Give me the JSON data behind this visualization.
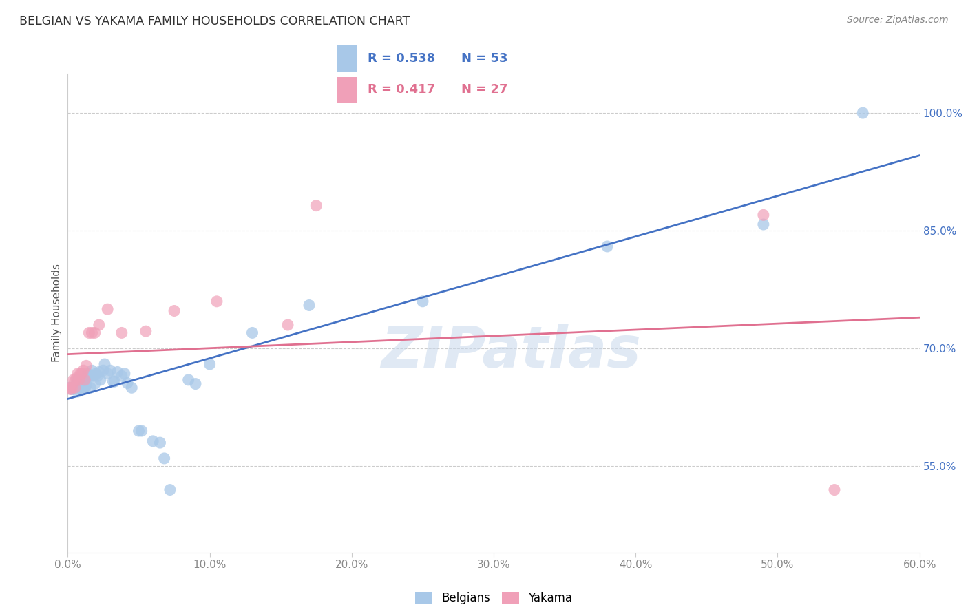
{
  "title": "BELGIAN VS YAKAMA FAMILY HOUSEHOLDS CORRELATION CHART",
  "source": "Source: ZipAtlas.com",
  "ylabel": "Family Households",
  "yticks_vals": [
    0.55,
    0.7,
    0.85,
    1.0
  ],
  "yticks_labels": [
    "55.0%",
    "70.0%",
    "85.0%",
    "100.0%"
  ],
  "xticks_vals": [
    0.0,
    0.1,
    0.2,
    0.3,
    0.4,
    0.5,
    0.6
  ],
  "xticks_labels": [
    "0.0%",
    "10.0%",
    "20.0%",
    "30.0%",
    "40.0%",
    "50.0%",
    "60.0%"
  ],
  "xlim": [
    0.0,
    0.6
  ],
  "ylim": [
    0.44,
    1.05
  ],
  "blue_scatter_color": "#a8c8e8",
  "blue_line_color": "#4472c4",
  "pink_scatter_color": "#f0a0b8",
  "pink_line_color": "#e07090",
  "legend_r_blue": "0.538",
  "legend_n_blue": "53",
  "legend_r_pink": "0.417",
  "legend_n_pink": "27",
  "watermark": "ZIPatlas",
  "blue_x": [
    0.001,
    0.003,
    0.005,
    0.006,
    0.007,
    0.007,
    0.008,
    0.009,
    0.009,
    0.01,
    0.011,
    0.011,
    0.012,
    0.012,
    0.013,
    0.013,
    0.014,
    0.015,
    0.016,
    0.016,
    0.017,
    0.018,
    0.019,
    0.02,
    0.021,
    0.022,
    0.023,
    0.025,
    0.026,
    0.028,
    0.03,
    0.032,
    0.033,
    0.035,
    0.038,
    0.04,
    0.042,
    0.045,
    0.05,
    0.052,
    0.06,
    0.065,
    0.068,
    0.072,
    0.085,
    0.09,
    0.1,
    0.13,
    0.17,
    0.25,
    0.38,
    0.49,
    0.56
  ],
  "blue_y": [
    0.65,
    0.648,
    0.65,
    0.655,
    0.66,
    0.645,
    0.65,
    0.66,
    0.648,
    0.653,
    0.66,
    0.648,
    0.66,
    0.65,
    0.662,
    0.653,
    0.668,
    0.665,
    0.665,
    0.65,
    0.672,
    0.665,
    0.655,
    0.668,
    0.665,
    0.67,
    0.66,
    0.672,
    0.68,
    0.668,
    0.672,
    0.658,
    0.658,
    0.67,
    0.665,
    0.668,
    0.656,
    0.65,
    0.595,
    0.595,
    0.582,
    0.58,
    0.56,
    0.52,
    0.66,
    0.655,
    0.68,
    0.72,
    0.755,
    0.76,
    0.83,
    0.858,
    1.0
  ],
  "pink_x": [
    0.001,
    0.002,
    0.003,
    0.004,
    0.005,
    0.005,
    0.006,
    0.007,
    0.008,
    0.009,
    0.01,
    0.011,
    0.012,
    0.013,
    0.015,
    0.017,
    0.019,
    0.022,
    0.028,
    0.038,
    0.055,
    0.075,
    0.105,
    0.155,
    0.175,
    0.49,
    0.54
  ],
  "pink_y": [
    0.65,
    0.648,
    0.65,
    0.66,
    0.658,
    0.65,
    0.662,
    0.668,
    0.66,
    0.668,
    0.668,
    0.672,
    0.66,
    0.678,
    0.72,
    0.72,
    0.72,
    0.73,
    0.75,
    0.72,
    0.722,
    0.748,
    0.76,
    0.73,
    0.882,
    0.87,
    0.52
  ]
}
